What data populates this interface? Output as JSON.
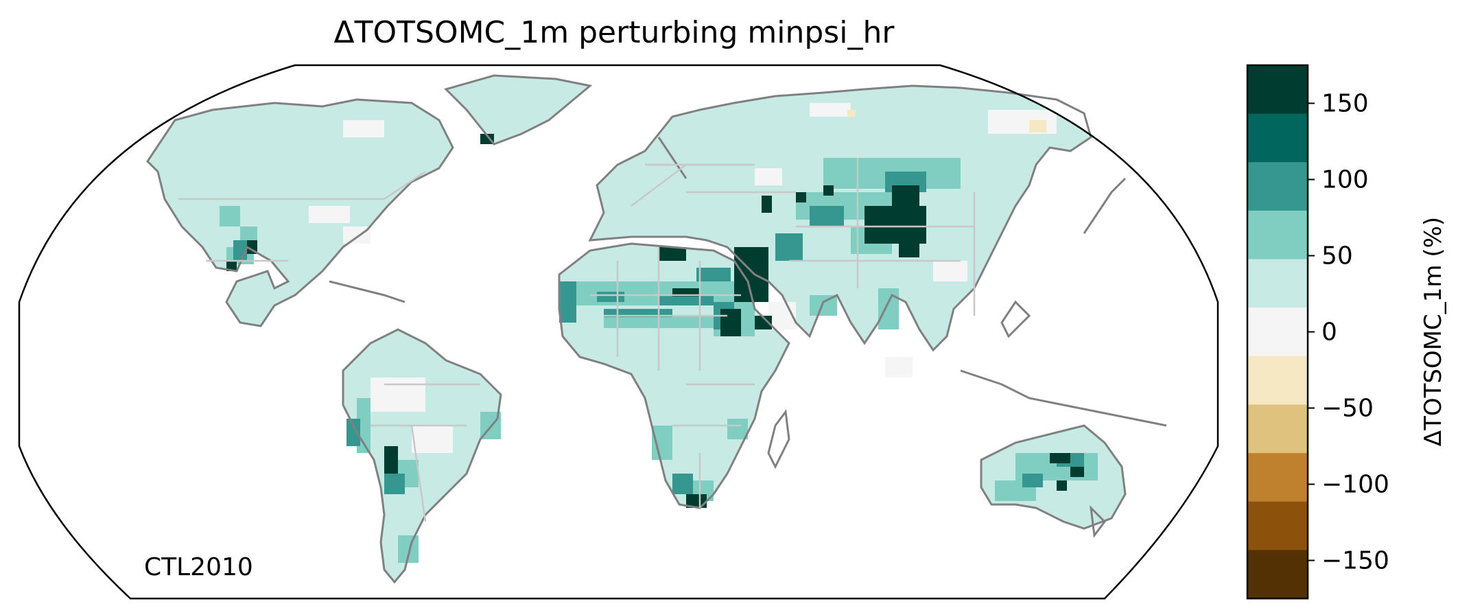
{
  "title": "ΔTOTSOMC_1m perturbing minpsi_hr",
  "run_label": "CTL2010",
  "colorbar": {
    "label": "ΔTOTSOMC_1m (%)",
    "tick_labels": [
      "150",
      "100",
      "50",
      "0",
      "−50",
      "−100",
      "−150"
    ],
    "bins": [
      {
        "range": [
          -175,
          -125
        ],
        "color": "#543005"
      },
      {
        "range": [
          -125,
          -75
        ],
        "color": "#8c510a"
      },
      {
        "range": [
          -75,
          -25
        ],
        "color": "#bf812d"
      },
      {
        "range": [
          -25,
          25
        ],
        "color": "#dfc27d"
      },
      {
        "range": [
          25,
          75
        ],
        "color": "#f6e8c3"
      },
      {
        "range": [
          75,
          125
        ],
        "color": "#f5f5f5"
      },
      {
        "range": [
          125,
          175
        ],
        "color": "#c7eae5"
      }
    ],
    "colors_top_to_bottom": [
      "#003c30",
      "#01665e",
      "#35978f",
      "#80cdc1",
      "#c7eae5",
      "#f5f5f5",
      "#f6e8c3",
      "#dfc27d",
      "#bf812d",
      "#8c510a",
      "#543005"
    ]
  },
  "map": {
    "projection": "Robinson",
    "coastline_color": "#808080",
    "border_color": "#c8c8c8",
    "land_base_color": "#c7eae5"
  }
}
